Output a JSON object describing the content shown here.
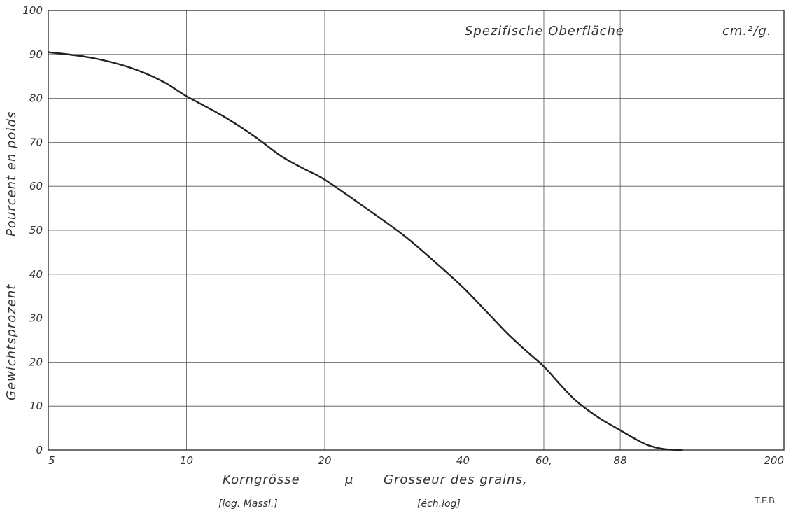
{
  "chart_data": {
    "type": "line",
    "title": "Spezifische Oberfläche",
    "title_unit": "cm.²/g.",
    "xlabel": "Korngrösse",
    "xlabel_unit": "μ",
    "xlabel_french": "Grosseur des grains,",
    "xlabel_note_de": "[log. Massl.]",
    "xlabel_note_fr": "[éch.log]",
    "ylabel_de": "Gewichtsprozent",
    "ylabel_fr": "Pourcent en poids",
    "x_scale": "log",
    "xlim": [
      5,
      200
    ],
    "ylim": [
      0,
      100
    ],
    "x_ticks": [
      5,
      10,
      20,
      40,
      60,
      88,
      200
    ],
    "x_tick_labels": [
      "5",
      "10",
      "20",
      "40",
      "60,",
      "88",
      "200"
    ],
    "y_ticks": [
      0,
      10,
      20,
      30,
      40,
      50,
      60,
      70,
      80,
      90,
      100
    ],
    "grid": true,
    "credit": "T.F.B.",
    "series": [
      {
        "x": [
          5,
          6,
          7,
          8,
          9,
          10,
          12,
          14,
          16,
          18,
          20,
          25,
          30,
          35,
          40,
          45,
          50,
          55,
          60,
          65,
          70,
          75,
          80,
          88,
          95,
          100,
          105,
          110,
          115,
          120
        ],
        "y": [
          90.5,
          89.5,
          88,
          86,
          83.5,
          80.5,
          76,
          71.5,
          67,
          64,
          61.5,
          54.5,
          48.5,
          42.5,
          37,
          31.5,
          26.5,
          22.5,
          19,
          15,
          11.5,
          9,
          7,
          4.5,
          2.5,
          1.3,
          0.6,
          0.2,
          0.05,
          0
        ]
      }
    ]
  }
}
